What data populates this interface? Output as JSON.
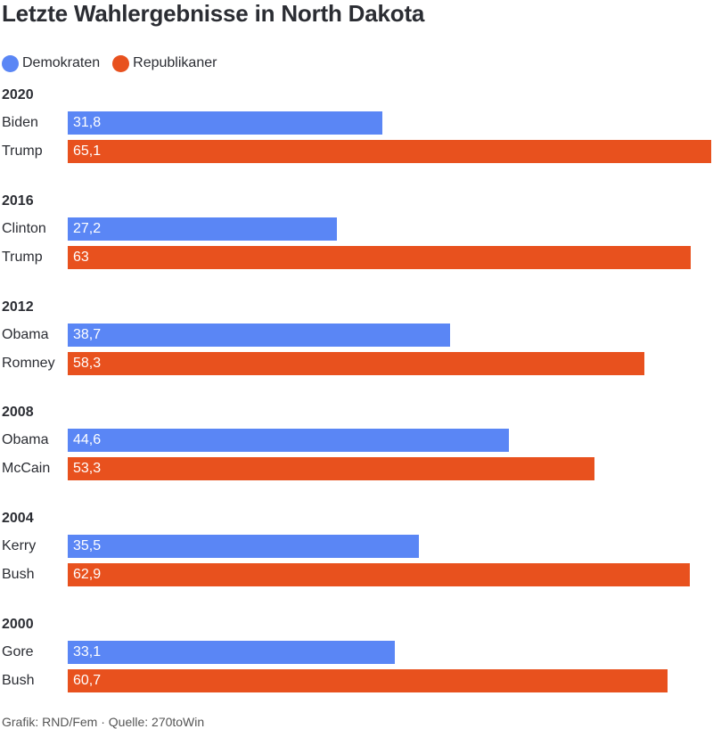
{
  "colors": {
    "democrats": "#5a86f5",
    "republicans": "#e8511e"
  },
  "chart_data": {
    "type": "bar",
    "orientation": "horizontal",
    "title": "Letzte Wahlergebnisse in North Dakota",
    "legend": [
      {
        "name": "Demokraten",
        "color": "#5a86f5"
      },
      {
        "name": "Republikaner",
        "color": "#e8511e"
      }
    ],
    "legend_position": "top-left",
    "xlim": [
      0,
      65.1
    ],
    "groups": [
      {
        "label": "2020",
        "rows": [
          {
            "candidate": "Biden",
            "party": "democrats",
            "value": 31.8,
            "value_label": "31,8"
          },
          {
            "candidate": "Trump",
            "party": "republicans",
            "value": 65.1,
            "value_label": "65,1"
          }
        ]
      },
      {
        "label": "2016",
        "rows": [
          {
            "candidate": "Clinton",
            "party": "democrats",
            "value": 27.2,
            "value_label": "27,2"
          },
          {
            "candidate": "Trump",
            "party": "republicans",
            "value": 63,
            "value_label": "63"
          }
        ]
      },
      {
        "label": "2012",
        "rows": [
          {
            "candidate": "Obama",
            "party": "democrats",
            "value": 38.7,
            "value_label": "38,7"
          },
          {
            "candidate": "Romney",
            "party": "republicans",
            "value": 58.3,
            "value_label": "58,3"
          }
        ]
      },
      {
        "label": "2008",
        "rows": [
          {
            "candidate": "Obama",
            "party": "democrats",
            "value": 44.6,
            "value_label": "44,6"
          },
          {
            "candidate": "McCain",
            "party": "republicans",
            "value": 53.3,
            "value_label": "53,3"
          }
        ]
      },
      {
        "label": "2004",
        "rows": [
          {
            "candidate": "Kerry",
            "party": "democrats",
            "value": 35.5,
            "value_label": "35,5"
          },
          {
            "candidate": "Bush",
            "party": "republicans",
            "value": 62.9,
            "value_label": "62,9"
          }
        ]
      },
      {
        "label": "2000",
        "rows": [
          {
            "candidate": "Gore",
            "party": "democrats",
            "value": 33.1,
            "value_label": "33,1"
          },
          {
            "candidate": "Bush",
            "party": "republicans",
            "value": 60.7,
            "value_label": "60,7"
          }
        ]
      }
    ],
    "footer": "Grafik: RND/Fem · Quelle: 270toWin"
  }
}
